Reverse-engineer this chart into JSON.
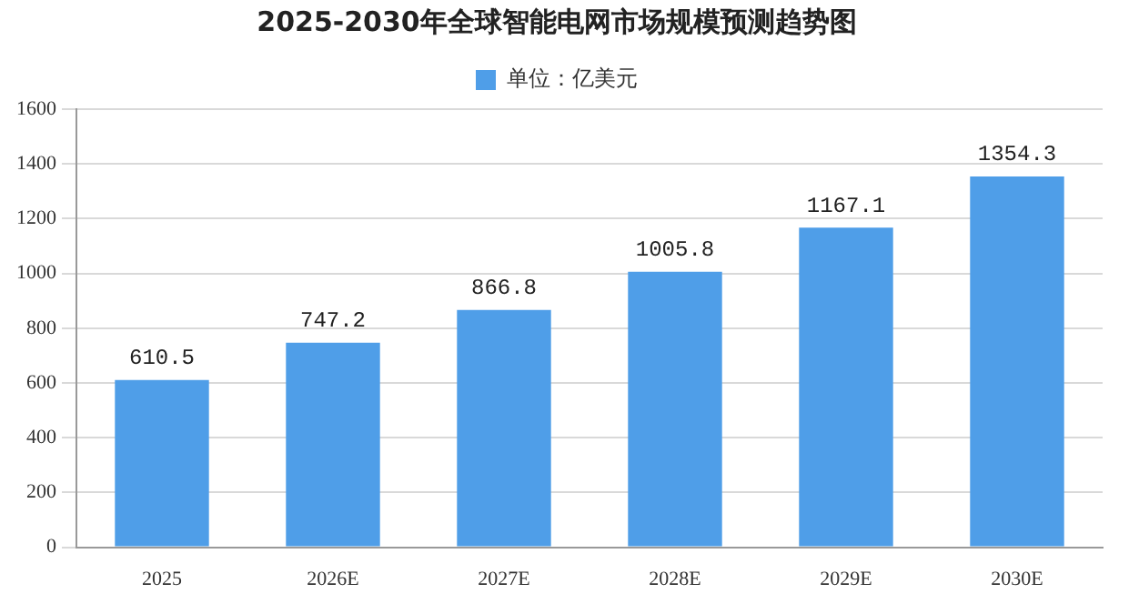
{
  "chart_data": {
    "type": "bar",
    "title": "2025-2030年全球智能电网市场规模预测趋势图",
    "categories": [
      "2025",
      "2026E",
      "2027E",
      "2028E",
      "2029E",
      "2030E"
    ],
    "series": [
      {
        "name": "单位：亿美元",
        "color": "#4f9ee8",
        "values": [
          610.5,
          747.2,
          866.8,
          1005.8,
          1167.1,
          1354.3
        ]
      }
    ],
    "ylim": [
      0,
      1600
    ],
    "yticks": [
      0,
      200,
      400,
      600,
      800,
      1000,
      1200,
      1400,
      1600
    ],
    "grid": "y",
    "legend": "top",
    "data_labels": true
  }
}
